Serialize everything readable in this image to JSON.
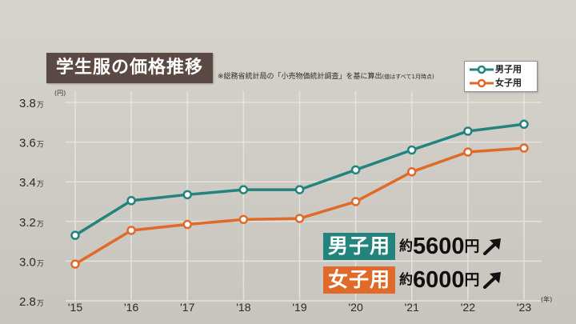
{
  "title": "学生服の価格推移",
  "source_note": "※総務省統計局の「小売物価統計調査」を基に算出",
  "source_note_sub": "(値はすべて1月時点)",
  "unit_y": "(円)",
  "unit_x": "(年)",
  "legend": {
    "boys": "男子用",
    "girls": "女子用"
  },
  "colors": {
    "boys": "#23847d",
    "girls": "#e06a29",
    "title_bg": "#5b4a44",
    "grid": "#e6e3dd"
  },
  "callouts": {
    "boys": {
      "label": "男子用",
      "approx": "約",
      "amount": "5600",
      "yen": "円"
    },
    "girls": {
      "label": "女子用",
      "approx": "約",
      "amount": "6000",
      "yen": "円"
    }
  },
  "chart_data": {
    "type": "line",
    "title": "学生服の価格推移",
    "x": [
      "'15",
      "'16",
      "'17",
      "'18",
      "'19",
      "'20",
      "'21",
      "'22",
      "'23"
    ],
    "y_tick_labels": [
      "2.8",
      "3.0",
      "3.2",
      "3.4",
      "3.6",
      "3.8"
    ],
    "y_tick_values": [
      28000,
      30000,
      32000,
      34000,
      36000,
      38000
    ],
    "y_tick_suffix": "万",
    "ylim": [
      28000,
      38000
    ],
    "grid": "vertical and horizontal",
    "legend_position": "top-right",
    "series": [
      {
        "name": "男子用",
        "color": "#23847d",
        "values": [
          31300,
          33050,
          33350,
          33600,
          33600,
          34600,
          35600,
          36550,
          36900
        ]
      },
      {
        "name": "女子用",
        "color": "#e06a29",
        "values": [
          29850,
          31550,
          31850,
          32100,
          32150,
          33000,
          34500,
          35500,
          35700
        ]
      }
    ]
  }
}
